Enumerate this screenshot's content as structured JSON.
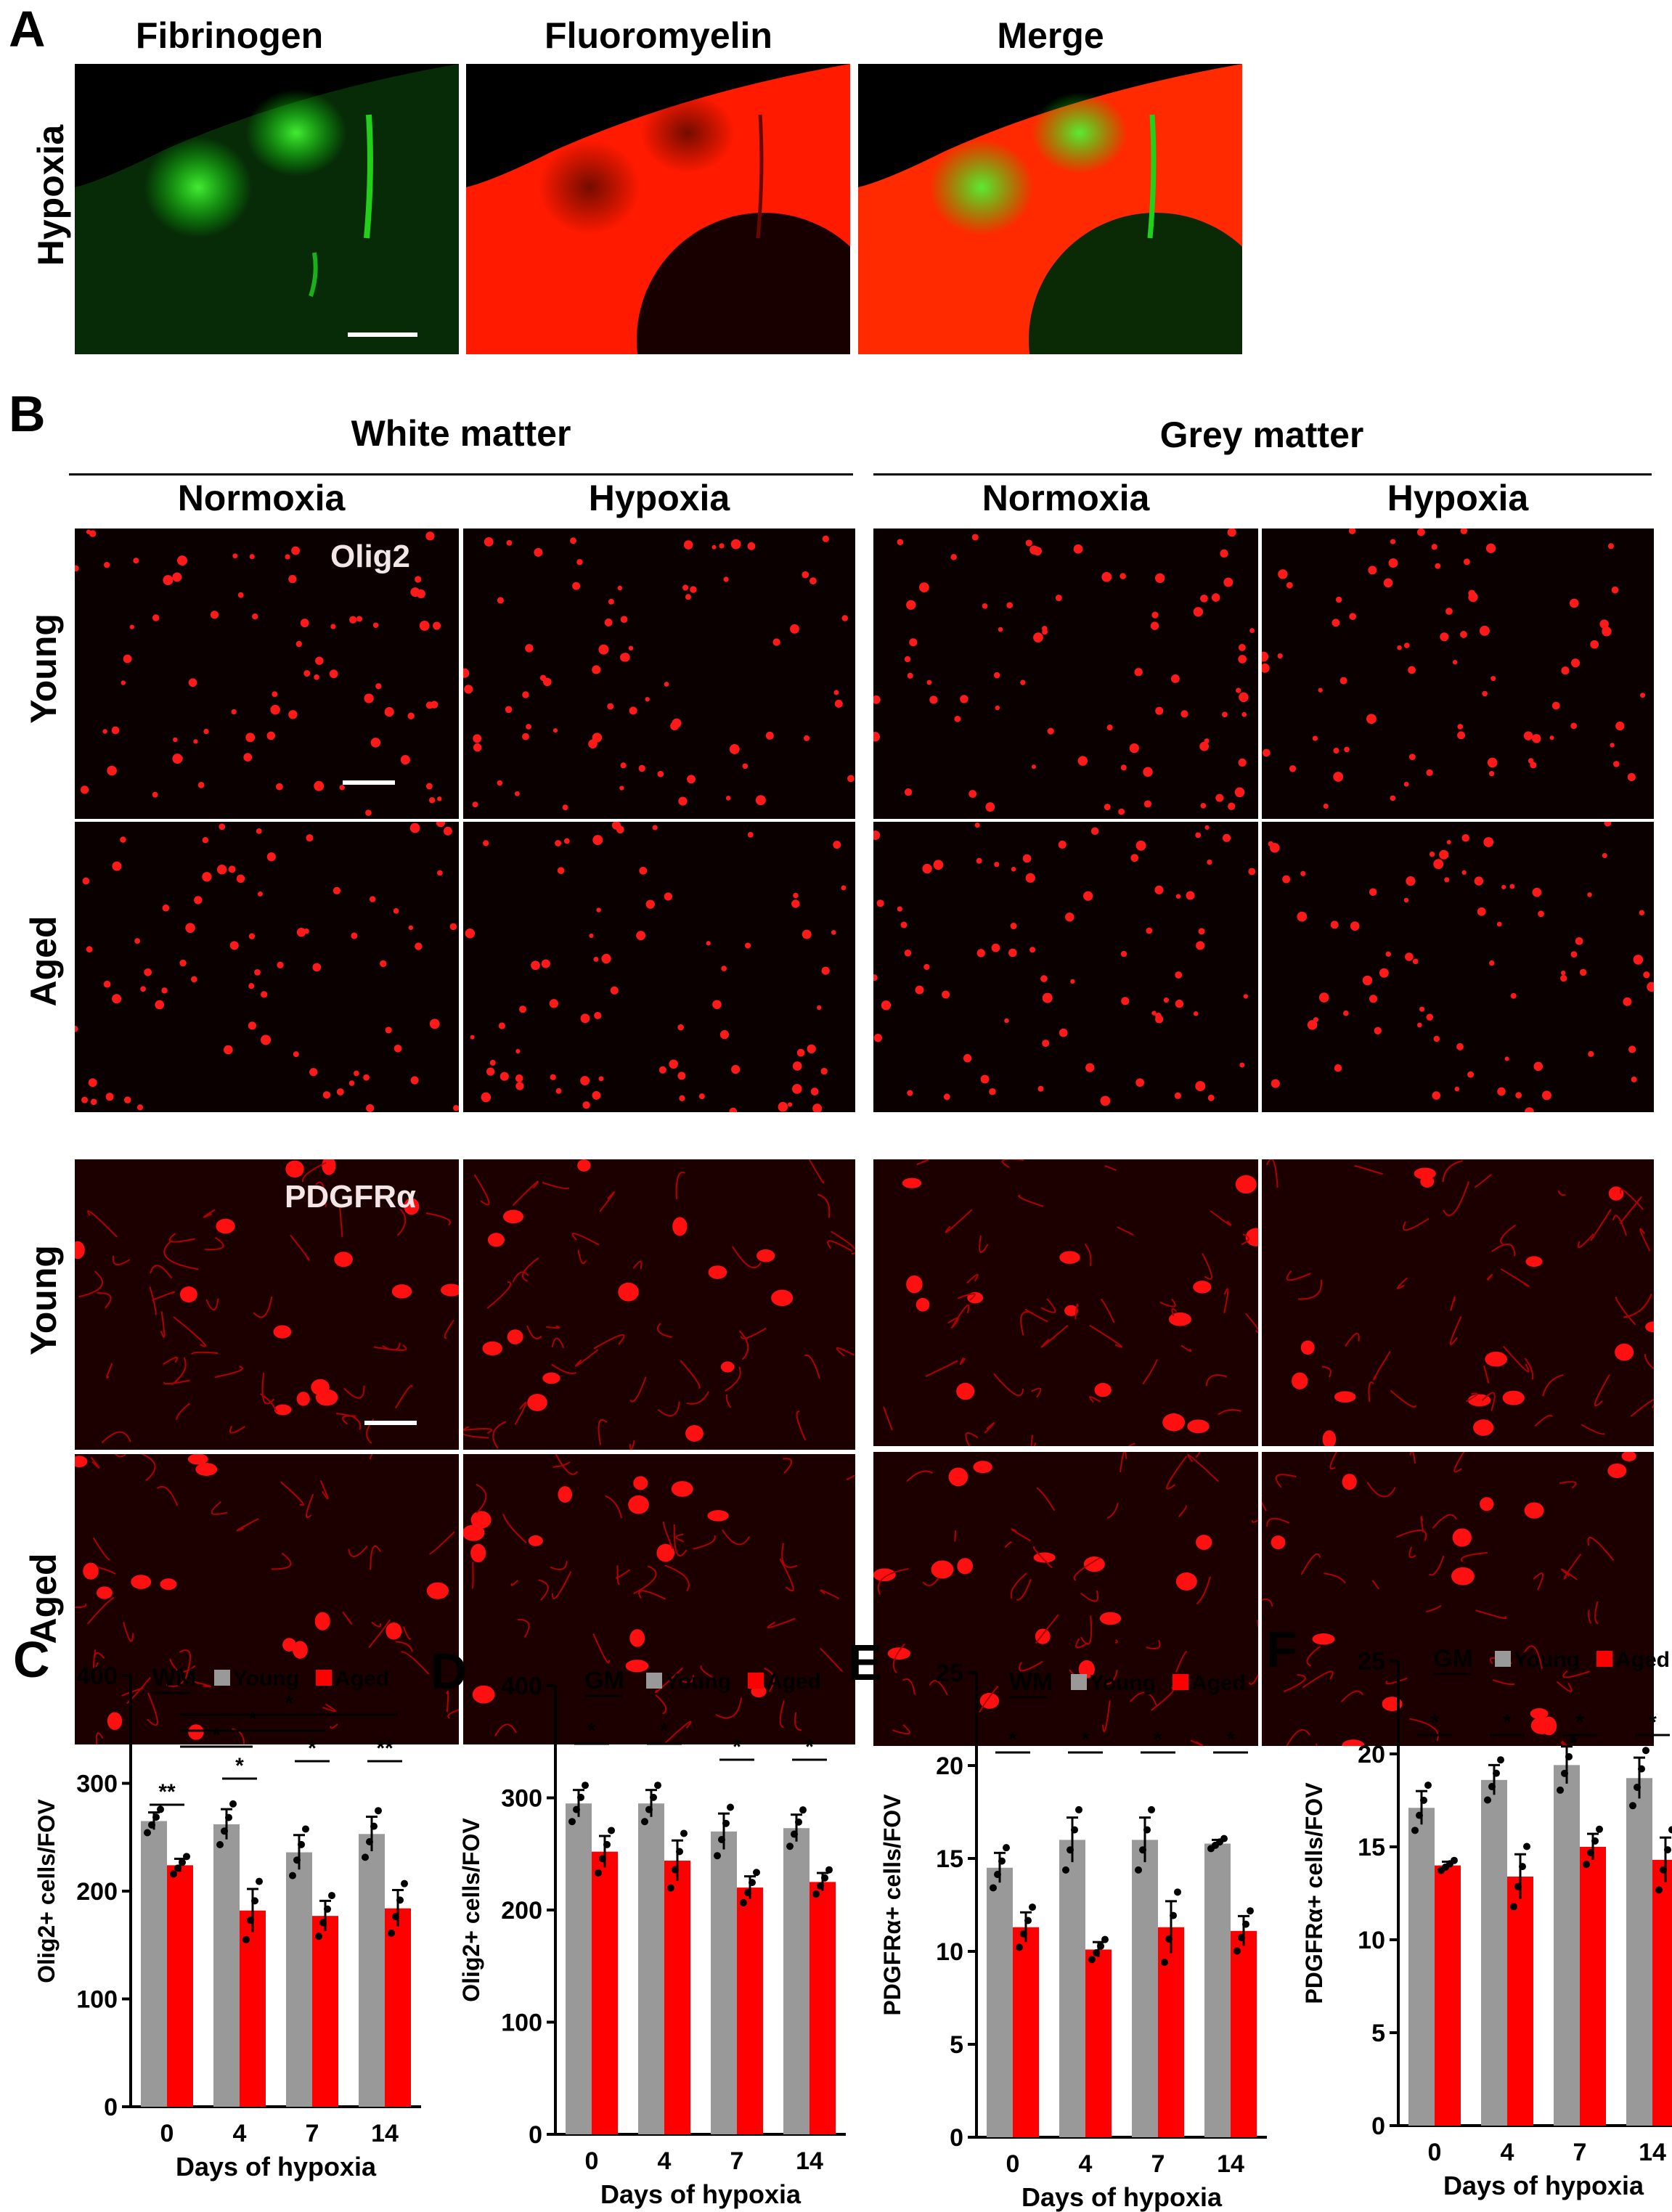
{
  "panelA": {
    "letter": "A",
    "columns": [
      "Fibrinogen",
      "Fluoromyelin",
      "Merge"
    ],
    "row_label": "Hypoxia"
  },
  "panelB": {
    "letter": "B",
    "regions": [
      "White matter",
      "Grey matter"
    ],
    "conditions": [
      "Normoxia",
      "Hypoxia",
      "Normoxia",
      "Hypoxia"
    ],
    "rows": [
      "Young",
      "Aged",
      "Young",
      "Aged"
    ],
    "markers": [
      "Olig2",
      "PDGFRα"
    ]
  },
  "colors": {
    "young": "#999999",
    "aged": "#ff0000",
    "green": "#00ff00",
    "red": "#ff0000"
  },
  "chart_data": [
    {
      "letter": "C",
      "type": "bar",
      "region": "WM",
      "categories": [
        "0",
        "4",
        "7",
        "14"
      ],
      "xlabel": "Days of hypoxia",
      "ylabel": "Olig2+ cells/FOV",
      "ylim": [
        0,
        400
      ],
      "yticks": [
        "0",
        "100",
        "200",
        "300",
        "400"
      ],
      "series": [
        {
          "name": "Young",
          "values": [
            265,
            262,
            236,
            253
          ],
          "err": [
            8,
            14,
            16,
            16
          ]
        },
        {
          "name": "Aged",
          "values": [
            224,
            182,
            177,
            184
          ],
          "err": [
            6,
            20,
            14,
            17
          ]
        }
      ],
      "annotations": [
        "**",
        "*",
        "*",
        "**",
        "*",
        "*",
        "*"
      ]
    },
    {
      "letter": "D",
      "type": "bar",
      "region": "GM",
      "categories": [
        "0",
        "4",
        "7",
        "14"
      ],
      "xlabel": "Days of hypoxia",
      "ylabel": "Olig2+ cells/FOV",
      "ylim": [
        0,
        400
      ],
      "yticks": [
        "0",
        "100",
        "200",
        "300",
        "400"
      ],
      "series": [
        {
          "name": "Young",
          "values": [
            295,
            295,
            270,
            273
          ],
          "err": [
            12,
            12,
            16,
            12
          ]
        },
        {
          "name": "Aged",
          "values": [
            252,
            244,
            220,
            225
          ],
          "err": [
            14,
            18,
            10,
            8
          ]
        }
      ],
      "annotations": [
        "*",
        "*",
        "*",
        "*"
      ]
    },
    {
      "letter": "E",
      "type": "bar",
      "region": "WM",
      "categories": [
        "0",
        "4",
        "7",
        "14"
      ],
      "xlabel": "Days of hypoxia",
      "ylabel": "PDGFRα+ cells/FOV",
      "ylim": [
        0,
        25
      ],
      "yticks": [
        "0",
        "5",
        "10",
        "15",
        "20",
        "25"
      ],
      "series": [
        {
          "name": "Young",
          "values": [
            14.5,
            16.0,
            16.0,
            15.8
          ],
          "err": [
            0.8,
            1.2,
            1.2,
            0.2
          ]
        },
        {
          "name": "Aged",
          "values": [
            11.3,
            10.1,
            11.3,
            11.1
          ],
          "err": [
            0.8,
            0.4,
            1.4,
            0.8
          ]
        }
      ],
      "annotations": [
        "*",
        "*",
        "*",
        "*"
      ]
    },
    {
      "letter": "F",
      "type": "bar",
      "region": "GM",
      "categories": [
        "0",
        "4",
        "7",
        "14"
      ],
      "xlabel": "Days of hypoxia",
      "ylabel": "PDGFRα+ cells/FOV",
      "ylim": [
        0,
        25
      ],
      "yticks": [
        "0",
        "5",
        "10",
        "15",
        "20",
        "25"
      ],
      "series": [
        {
          "name": "Young",
          "values": [
            17.1,
            18.6,
            19.4,
            18.7
          ],
          "err": [
            0.9,
            0.8,
            1.0,
            1.1
          ]
        },
        {
          "name": "Aged",
          "values": [
            14.0,
            13.4,
            15.0,
            14.3
          ],
          "err": [
            0.2,
            1.2,
            0.7,
            1.2
          ]
        }
      ],
      "annotations": [
        "*",
        "*",
        "*",
        "*"
      ]
    }
  ]
}
